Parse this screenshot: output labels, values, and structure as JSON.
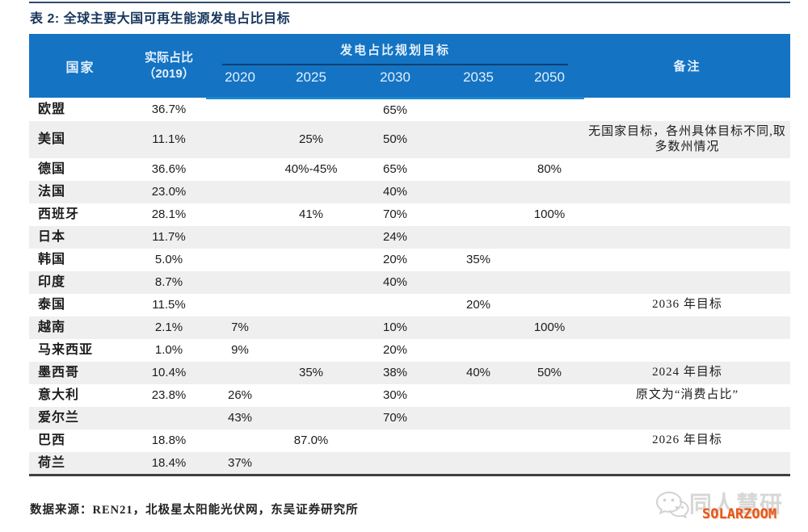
{
  "title": "表 2:  全球主要大国可再生能源发电占比目标",
  "table": {
    "header": {
      "country": "国家",
      "actual_line1": "实际占比",
      "actual_line2": "（2019）",
      "target_group": "发电占比规划目标",
      "years": [
        "2020",
        "2025",
        "2030",
        "2035",
        "2050"
      ],
      "note": "备注"
    },
    "rows": [
      {
        "country": "欧盟",
        "actual": "36.7%",
        "y2020": "",
        "y2025": "",
        "y2030": "65%",
        "y2035": "",
        "y2050": "",
        "note": ""
      },
      {
        "country": "美国",
        "actual": "11.1%",
        "y2020": "",
        "y2025": "25%",
        "y2030": "50%",
        "y2035": "",
        "y2050": "",
        "note": "无国家目标，各州具体目标不同,取多数州情况"
      },
      {
        "country": "德国",
        "actual": "36.6%",
        "y2020": "",
        "y2025": "40%-45%",
        "y2030": "65%",
        "y2035": "",
        "y2050": "80%",
        "note": ""
      },
      {
        "country": "法国",
        "actual": "23.0%",
        "y2020": "",
        "y2025": "",
        "y2030": "40%",
        "y2035": "",
        "y2050": "",
        "note": ""
      },
      {
        "country": "西班牙",
        "actual": "28.1%",
        "y2020": "",
        "y2025": "41%",
        "y2030": "70%",
        "y2035": "",
        "y2050": "100%",
        "note": ""
      },
      {
        "country": "日本",
        "actual": "11.7%",
        "y2020": "",
        "y2025": "",
        "y2030": "24%",
        "y2035": "",
        "y2050": "",
        "note": ""
      },
      {
        "country": "韩国",
        "actual": "5.0%",
        "y2020": "",
        "y2025": "",
        "y2030": "20%",
        "y2035": "35%",
        "y2050": "",
        "note": ""
      },
      {
        "country": "印度",
        "actual": "8.7%",
        "y2020": "",
        "y2025": "",
        "y2030": "40%",
        "y2035": "",
        "y2050": "",
        "note": ""
      },
      {
        "country": "泰国",
        "actual": "11.5%",
        "y2020": "",
        "y2025": "",
        "y2030": "",
        "y2035": "20%",
        "y2050": "",
        "note": "2036 年目标"
      },
      {
        "country": "越南",
        "actual": "2.1%",
        "y2020": "7%",
        "y2025": "",
        "y2030": "10%",
        "y2035": "",
        "y2050": "100%",
        "note": ""
      },
      {
        "country": "马来西亚",
        "actual": "1.0%",
        "y2020": "9%",
        "y2025": "",
        "y2030": "20%",
        "y2035": "",
        "y2050": "",
        "note": ""
      },
      {
        "country": "墨西哥",
        "actual": "10.4%",
        "y2020": "",
        "y2025": "35%",
        "y2030": "38%",
        "y2035": "40%",
        "y2050": "50%",
        "note": "2024 年目标"
      },
      {
        "country": "意大利",
        "actual": "23.8%",
        "y2020": "26%",
        "y2025": "",
        "y2030": "30%",
        "y2035": "",
        "y2050": "",
        "note": "原文为“消费占比”"
      },
      {
        "country": "爱尔兰",
        "actual": "",
        "y2020": "43%",
        "y2025": "",
        "y2030": "70%",
        "y2035": "",
        "y2050": "",
        "note": ""
      },
      {
        "country": "巴西",
        "actual": "18.8%",
        "y2020": "",
        "y2025": "87.0%",
        "y2030": "",
        "y2035": "",
        "y2050": "",
        "note": "2026 年目标"
      },
      {
        "country": "荷兰",
        "actual": "18.4%",
        "y2020": "37%",
        "y2025": "",
        "y2030": "",
        "y2035": "",
        "y2050": "",
        "note": ""
      }
    ]
  },
  "footer": "数据来源：REN21，北极星太阳能光伏网，东吴证券研究所",
  "watermark": {
    "brand": "同人慧研",
    "overlay": "SOLARZOOM"
  },
  "colors": {
    "navy": "#17365D",
    "header_blue": "#1473C3",
    "header_text": "#E3F0FB",
    "group_underline": "#0C3E70",
    "header_bottom": "#1E88D2",
    "stripe": "#EFEFEF",
    "body_text": "#1C1C1C",
    "table_bottom": "#3F3F3F",
    "orange": "#E5561C",
    "wm_gray": "#D7D7D5"
  }
}
